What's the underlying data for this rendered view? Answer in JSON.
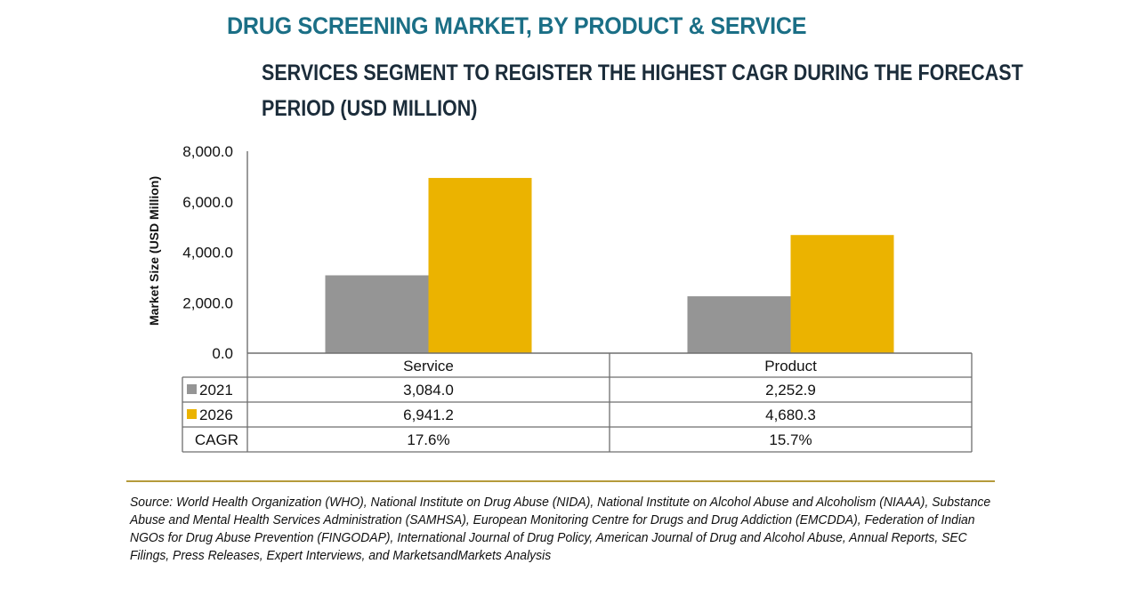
{
  "header": {
    "title": "DRUG SCREENING MARKET, BY PRODUCT & SERVICE",
    "subtitle_line1": "SERVICES SEGMENT TO REGISTER THE HIGHEST CAGR DURING THE FORECAST",
    "subtitle_line2": "PERIOD (USD MILLION)"
  },
  "colors": {
    "series_2021": "#959595",
    "series_2026": "#ebb300",
    "title": "#1b6f86",
    "rule": "#b59b3b"
  },
  "chart_data": {
    "type": "bar",
    "title": "DRUG SCREENING MARKET, BY PRODUCT & SERVICE",
    "subtitle": "SERVICES SEGMENT TO REGISTER THE HIGHEST CAGR DURING THE FORECAST PERIOD (USD MILLION)",
    "xlabel": "",
    "ylabel": "Market Size (USD Million)",
    "ylim": [
      0,
      8000
    ],
    "yticks": [
      0,
      2000,
      4000,
      6000,
      8000
    ],
    "ytick_labels": [
      "0.0",
      "2,000.0",
      "4,000.0",
      "6,000.0",
      "8,000.0"
    ],
    "grid": false,
    "legend": "embedded-in-data-table",
    "categories": [
      "Service",
      "Product"
    ],
    "series": [
      {
        "name": "2021",
        "values": [
          3084.0,
          2252.9
        ],
        "labels": [
          "3,084.0",
          "2,252.9"
        ]
      },
      {
        "name": "2026",
        "values": [
          6941.2,
          4680.3
        ],
        "labels": [
          "6,941.2",
          "4,680.3"
        ]
      }
    ],
    "cagr": {
      "name": "CAGR",
      "values": [
        "17.6%",
        "15.7%"
      ]
    }
  },
  "source": "Source: World Health Organization (WHO), National Institute on Drug Abuse (NIDA), National Institute on Alcohol Abuse and Alcoholism (NIAAA), Substance Abuse and Mental Health Services Administration (SAMHSA), European Monitoring Centre for Drugs and Drug Addiction (EMCDDA), Federation of Indian NGOs for Drug Abuse Prevention (FINGODAP), International Journal of Drug Policy, American Journal of Drug and Alcohol Abuse, Annual Reports, SEC Filings, Press Releases, Expert Interviews, and MarketsandMarkets Analysis"
}
